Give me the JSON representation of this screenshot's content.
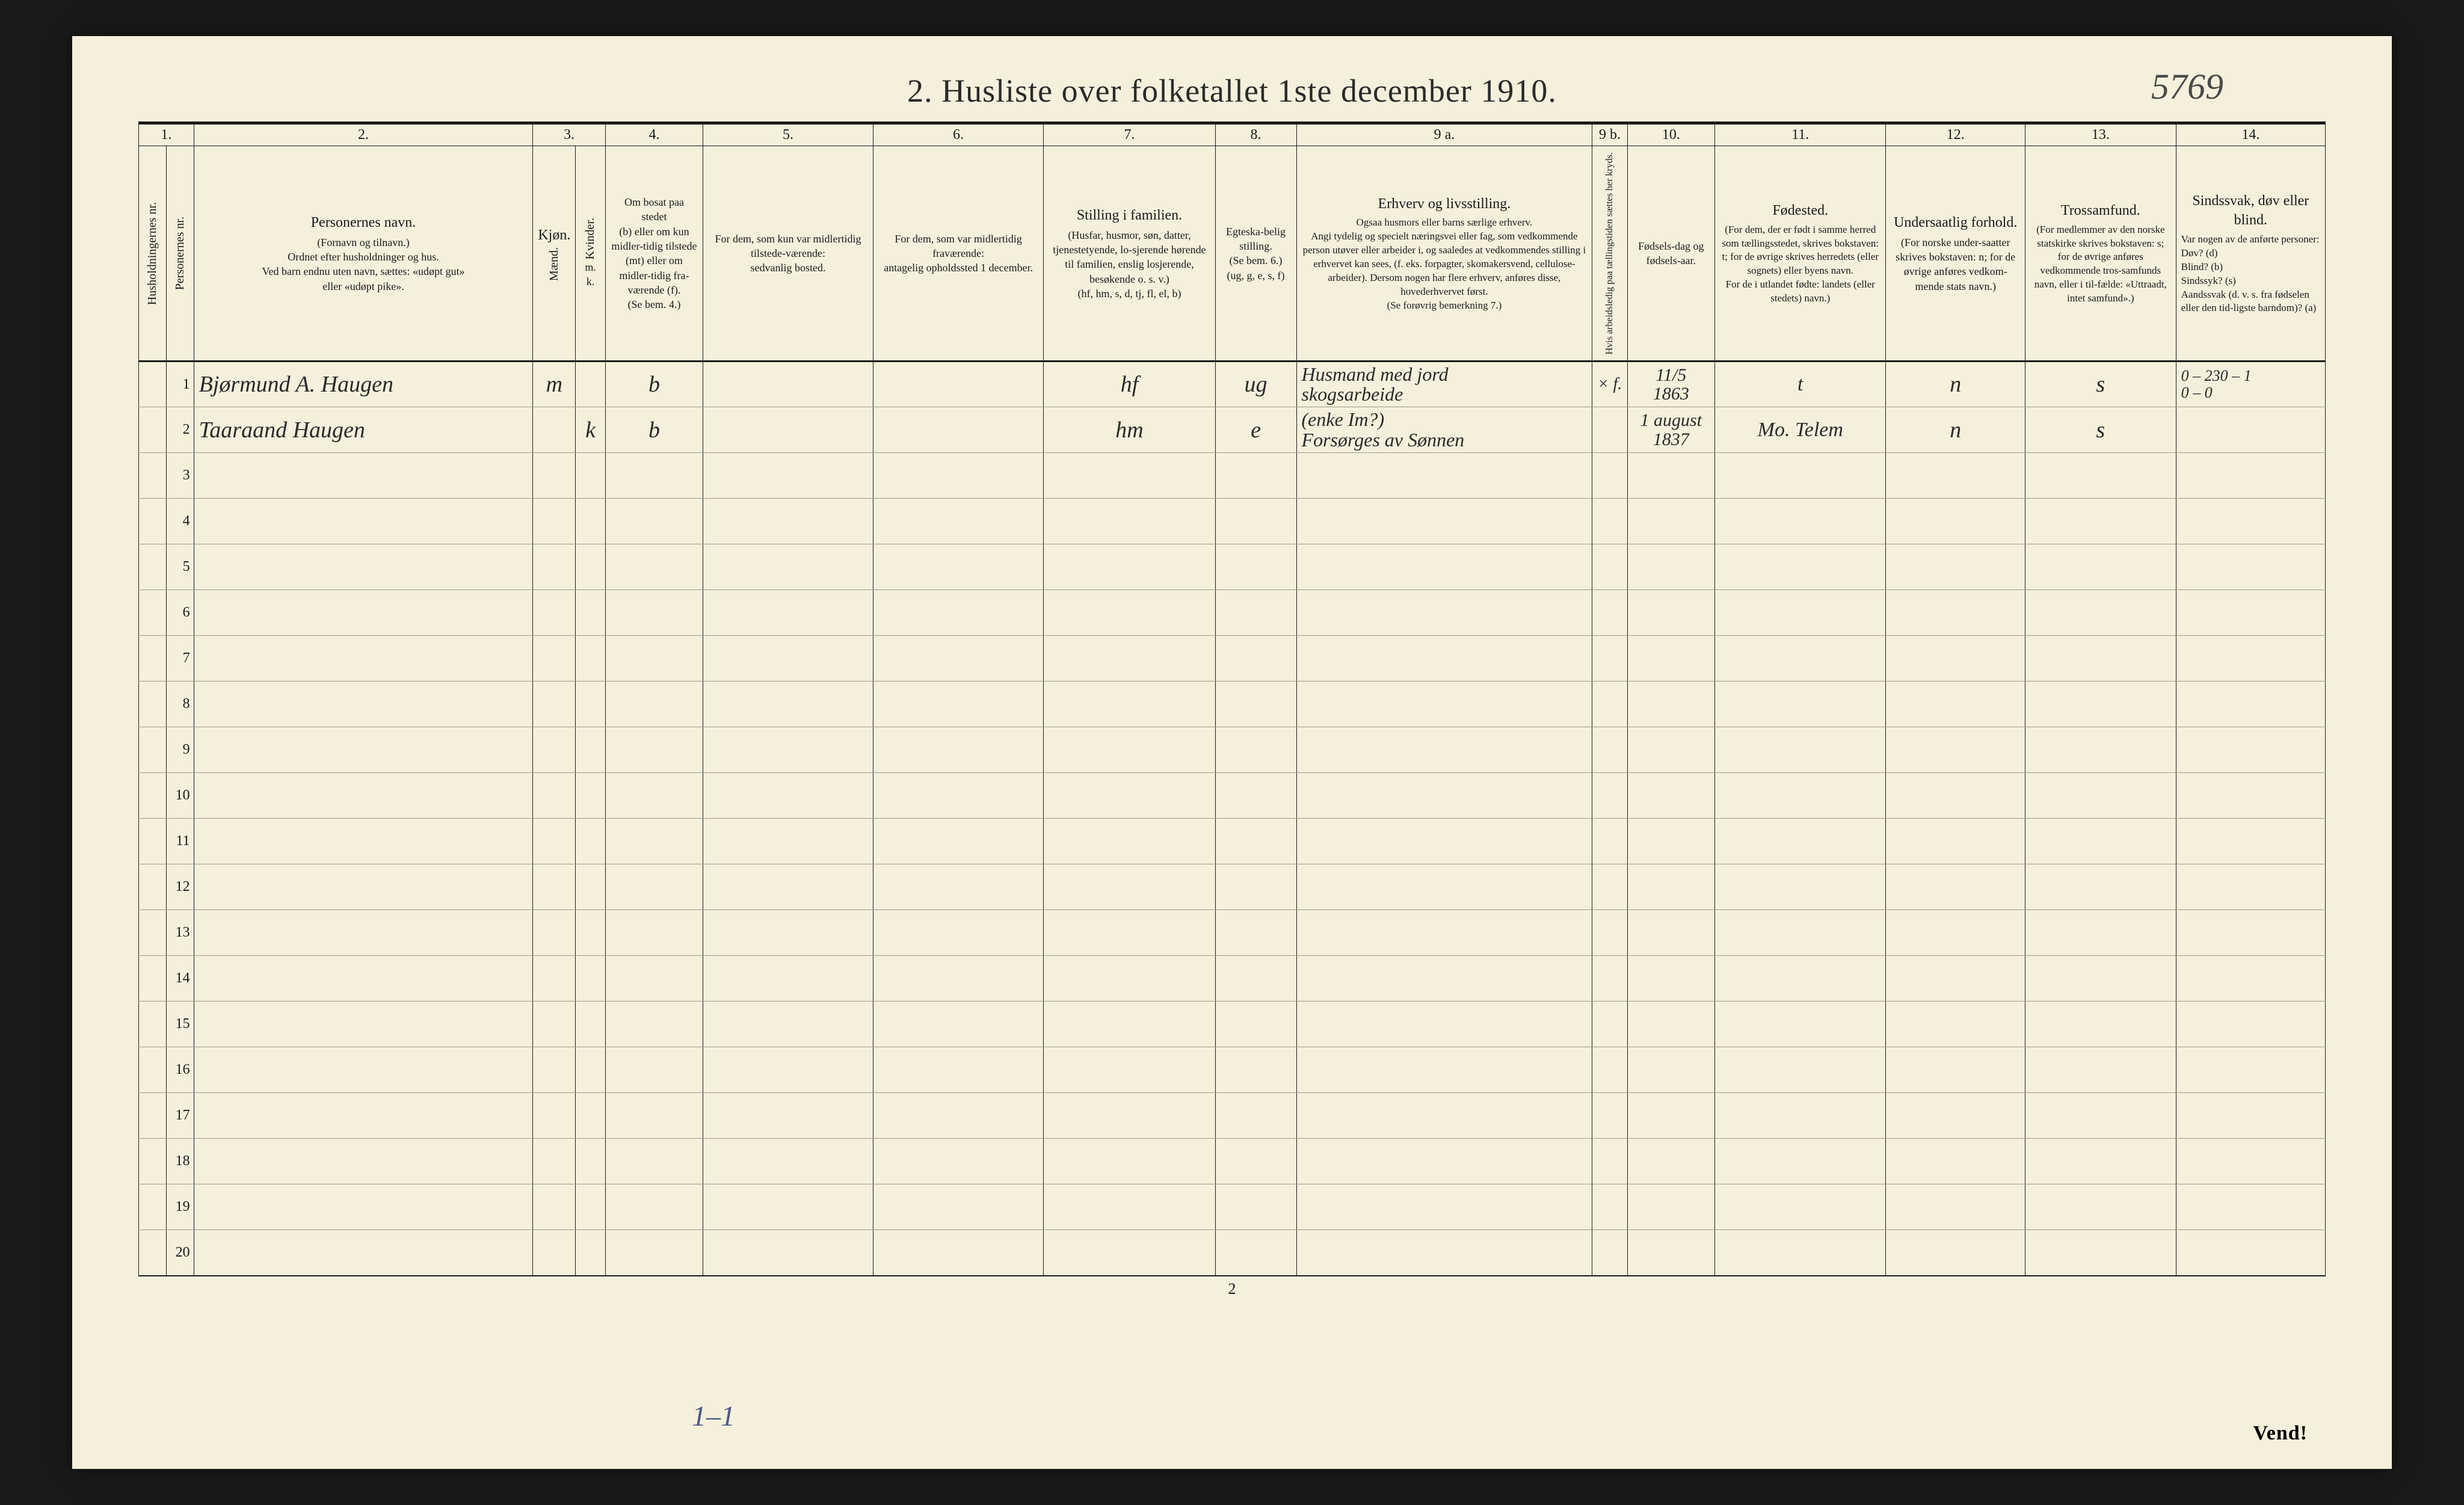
{
  "title": "2.  Husliste over folketallet 1ste december 1910.",
  "top_annotation": "5769",
  "page_number": "2",
  "vend": "Vend!",
  "tally": "1–1",
  "col_numbers": [
    "1.",
    "2.",
    "3.",
    "4.",
    "5.",
    "6.",
    "7.",
    "8.",
    "9 a.",
    "9 b.",
    "10.",
    "11.",
    "12.",
    "13.",
    "14."
  ],
  "headers": {
    "c1a": "Husholdningernes nr.",
    "c1b": "Personernes nr.",
    "c2_main": "Personernes navn.",
    "c2_sub": "(Fornavn og tilnavn.)\nOrdnet efter husholdninger og hus.\nVed barn endnu uten navn, sættes: «udøpt gut»\neller «udøpt pike».",
    "c3_main": "Kjøn.",
    "c3a": "Mænd.",
    "c3b": "Kvinder.",
    "c3_foot": "m.  k.",
    "c4_main": "Om bosat paa stedet",
    "c4_sub": "(b) eller om kun midler-tidig tilstede (mt) eller om midler-tidig fra-værende (f).\n(Se bem. 4.)",
    "c5_main": "For dem, som kun var midlertidig tilstede-værende:",
    "c5_sub": "sedvanlig bosted.",
    "c6_main": "For dem, som var midlertidig fraværende:",
    "c6_sub": "antagelig opholdssted 1 december.",
    "c7_main": "Stilling i familien.",
    "c7_sub": "(Husfar, husmor, søn, datter, tjenestetyende, lo-sjerende hørende til familien, enslig losjerende, besøkende o. s. v.)\n(hf, hm, s, d, tj, fl, el, b)",
    "c8_main": "Egteska-belig stilling.",
    "c8_sub": "(Se bem. 6.)\n(ug, g, e, s, f)",
    "c9a_main": "Erhverv og livsstilling.",
    "c9a_sub": "Ogsaa husmors eller barns særlige erhverv.\nAngi tydelig og specielt næringsvei eller fag, som vedkommende person utøver eller arbeider i, og saaledes at vedkommendes stilling i erhvervet kan sees, (f. eks. forpagter, skomakersvend, cellulose-arbeider). Dersom nogen har flere erhverv, anføres disse, hovederhvervet først.\n(Se forøvrig bemerkning 7.)",
    "c9b": "Hvis arbeidsledig paa tællingstiden sættes her kryds.",
    "c10_main": "Fødsels-dag og fødsels-aar.",
    "c11_main": "Fødested.",
    "c11_sub": "(For dem, der er født i samme herred som tællingsstedet, skrives bokstaven: t; for de øvrige skrives herredets (eller sognets) eller byens navn.\nFor de i utlandet fødte: landets (eller stedets) navn.)",
    "c12_main": "Undersaatlig forhold.",
    "c12_sub": "(For norske under-saatter skrives bokstaven: n; for de øvrige anføres vedkom-mende stats navn.)",
    "c13_main": "Trossamfund.",
    "c13_sub": "(For medlemmer av den norske statskirke skrives bokstaven: s; for de øvrige anføres vedkommende tros-samfunds navn, eller i til-fælde: «Uttraadt, intet samfund».)",
    "c14_main": "Sindssvak, døv eller blind.",
    "c14_sub": "Var nogen av de anførte personer:\nDøv?        (d)\nBlind?      (b)\nSindssyk?  (s)\nAandssvak (d. v. s. fra fødselen eller den tid-ligste barndom)?  (a)"
  },
  "rows": [
    {
      "num": "1",
      "name": "Bjørmund A. Haugen",
      "sex_m": "m",
      "sex_k": "",
      "bosat": "b",
      "c5": "",
      "c6": "",
      "famstilling": "hf",
      "egt": "ug",
      "erhverv": "Husmand med jord\nskogsarbeide",
      "kryds": "× f.",
      "fodsel": "11/5\n1863",
      "fodested": "t",
      "undersaat": "n",
      "tros": "s",
      "note14": "0 – 230 – 1\n0 – 0"
    },
    {
      "num": "2",
      "name": "Taaraand Haugen",
      "sex_m": "",
      "sex_k": "k",
      "bosat": "b",
      "c5": "",
      "c6": "",
      "famstilling": "hm",
      "egt": "e",
      "erhverv": "(enke Im?)\nForsørges av Sønnen",
      "kryds": "",
      "fodsel": "1 august\n1837",
      "fodested": "Mo. Telem",
      "undersaat": "n",
      "tros": "s",
      "note14": ""
    }
  ],
  "empty_row_count": 18,
  "colors": {
    "paper": "#f5f0dc",
    "ink": "#1a1a1a",
    "pencil": "#4a5a8a",
    "rule": "#9a9a8a",
    "bg": "#1a1a1a"
  }
}
